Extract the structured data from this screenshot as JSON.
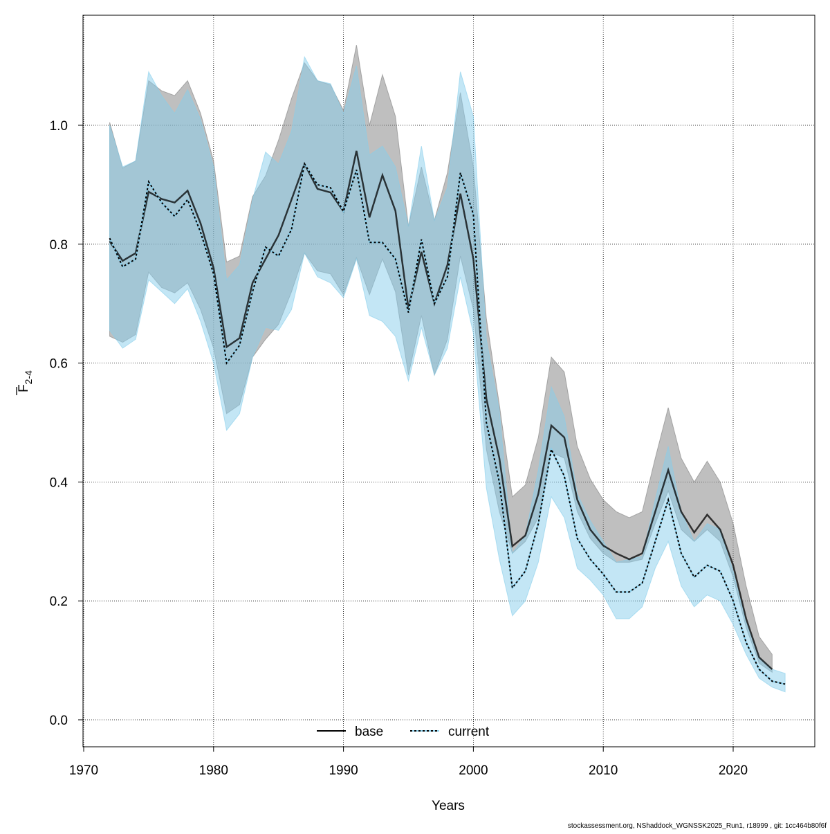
{
  "chart_data": {
    "type": "line",
    "title": "",
    "xlabel": "Years",
    "ylabel": "F",
    "ylabel_bar": true,
    "ylabel_subscript": "2-4",
    "xlim": [
      1970,
      2026
    ],
    "ylim": [
      -0.05,
      1.18
    ],
    "xticks": [
      "1970",
      "1980",
      "1990",
      "2000",
      "2010",
      "2020"
    ],
    "yticks": [
      "0.0",
      "0.2",
      "0.4",
      "0.6",
      "0.8",
      "1.0"
    ],
    "grid": true,
    "legend_placement": "bottom",
    "footer": "stockassessment.org, NShaddock_WGNSSK2025_Run1, r18999 , git: 1cc464b80f6f",
    "series": [
      {
        "name": "base",
        "color": "#000000",
        "band_color": "#808080",
        "line_style": "solid",
        "x_start": 1972,
        "values": [
          0.805,
          0.772,
          0.785,
          0.888,
          0.876,
          0.87,
          0.89,
          0.835,
          0.76,
          0.627,
          0.642,
          0.735,
          0.775,
          0.815,
          0.875,
          0.935,
          0.893,
          0.887,
          0.855,
          0.957,
          0.845,
          0.916,
          0.856,
          0.692,
          0.787,
          0.7,
          0.765,
          0.885,
          0.775,
          0.54,
          0.44,
          0.292,
          0.31,
          0.38,
          0.495,
          0.475,
          0.37,
          0.32,
          0.293,
          0.28,
          0.27,
          0.28,
          0.35,
          0.42,
          0.35,
          0.315,
          0.345,
          0.32,
          0.26,
          0.17,
          0.105,
          0.085
        ],
        "low": [
          0.645,
          0.635,
          0.648,
          0.753,
          0.727,
          0.718,
          0.735,
          0.69,
          0.625,
          0.515,
          0.53,
          0.61,
          0.64,
          0.665,
          0.72,
          0.785,
          0.755,
          0.75,
          0.715,
          0.777,
          0.715,
          0.775,
          0.72,
          0.58,
          0.68,
          0.58,
          0.64,
          0.78,
          0.69,
          0.455,
          0.35,
          0.28,
          0.3,
          0.34,
          0.45,
          0.44,
          0.35,
          0.305,
          0.28,
          0.265,
          0.265,
          0.27,
          0.33,
          0.385,
          0.32,
          0.3,
          0.32,
          0.3,
          0.24,
          0.155,
          0.095,
          0.08
        ],
        "high": [
          1.005,
          0.928,
          0.94,
          1.075,
          1.058,
          1.05,
          1.075,
          1.02,
          0.94,
          0.77,
          0.78,
          0.88,
          0.915,
          0.975,
          1.045,
          1.105,
          1.075,
          1.068,
          1.025,
          1.135,
          1.0,
          1.085,
          1.015,
          0.83,
          0.93,
          0.84,
          0.92,
          1.055,
          0.93,
          0.675,
          0.53,
          0.375,
          0.395,
          0.475,
          0.61,
          0.585,
          0.46,
          0.405,
          0.37,
          0.35,
          0.34,
          0.35,
          0.44,
          0.525,
          0.44,
          0.4,
          0.435,
          0.4,
          0.33,
          0.225,
          0.14,
          0.11
        ]
      },
      {
        "name": "current",
        "color": "#000000",
        "band_color": "#87ceeb",
        "line_style": "dotted",
        "x_start": 1972,
        "values": [
          0.81,
          0.762,
          0.775,
          0.905,
          0.87,
          0.847,
          0.875,
          0.82,
          0.75,
          0.6,
          0.63,
          0.72,
          0.795,
          0.78,
          0.825,
          0.935,
          0.9,
          0.895,
          0.855,
          0.925,
          0.803,
          0.803,
          0.775,
          0.685,
          0.808,
          0.7,
          0.745,
          0.92,
          0.85,
          0.5,
          0.4,
          0.222,
          0.25,
          0.33,
          0.455,
          0.41,
          0.305,
          0.27,
          0.245,
          0.215,
          0.215,
          0.23,
          0.3,
          0.37,
          0.28,
          0.24,
          0.26,
          0.25,
          0.2,
          0.13,
          0.085,
          0.065,
          0.06
        ],
        "low": [
          0.655,
          0.625,
          0.64,
          0.74,
          0.72,
          0.7,
          0.725,
          0.67,
          0.6,
          0.487,
          0.515,
          0.61,
          0.66,
          0.655,
          0.69,
          0.785,
          0.745,
          0.735,
          0.71,
          0.775,
          0.68,
          0.67,
          0.645,
          0.57,
          0.66,
          0.58,
          0.625,
          0.745,
          0.65,
          0.39,
          0.27,
          0.175,
          0.2,
          0.265,
          0.375,
          0.34,
          0.255,
          0.235,
          0.21,
          0.17,
          0.17,
          0.19,
          0.255,
          0.3,
          0.225,
          0.19,
          0.21,
          0.2,
          0.16,
          0.11,
          0.07,
          0.055,
          0.047
        ],
        "high": [
          1.0,
          0.93,
          0.94,
          1.09,
          1.05,
          1.02,
          1.06,
          1.01,
          0.93,
          0.74,
          0.765,
          0.875,
          0.955,
          0.935,
          0.99,
          1.115,
          1.075,
          1.07,
          1.02,
          1.1,
          0.95,
          0.965,
          0.93,
          0.83,
          0.965,
          0.84,
          0.895,
          1.09,
          1.015,
          0.64,
          0.52,
          0.28,
          0.31,
          0.42,
          0.56,
          0.51,
          0.38,
          0.335,
          0.3,
          0.265,
          0.27,
          0.275,
          0.37,
          0.46,
          0.35,
          0.3,
          0.33,
          0.32,
          0.25,
          0.165,
          0.105,
          0.085,
          0.078
        ]
      }
    ]
  }
}
